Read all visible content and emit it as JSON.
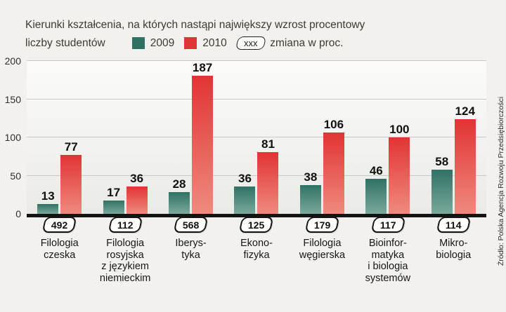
{
  "title": {
    "line1": "Kierunki kształcenia, na których nastąpi największy wzrost procentowy",
    "line2": "liczby studentów"
  },
  "legend": {
    "label_2009": "2009",
    "label_2010": "2010",
    "badge_sample": "xxx",
    "badge_label": "zmiana w proc."
  },
  "source": "Źródło: Polska Agencja Rozwoju Przedsiębiorczości",
  "colors": {
    "c2009": "#2f7264",
    "c2009_light": "#7aa99c",
    "c2010": "#e13434",
    "c2010_light": "#ef8a7e",
    "baseline": "#141414"
  },
  "chart_data": {
    "type": "bar",
    "title": "Kierunki kształcenia, na których nastąpi największy wzrost procentowy liczby studentów",
    "categories": [
      "Filologia czeska",
      "Filologia rosyjska z językiem niemieckim",
      "Iberystyka",
      "Ekonofizyka",
      "Filologia węgierska",
      "Bioinformatyka i biologia systemów",
      "Mikrobiologia"
    ],
    "category_lines": [
      [
        "Filologia",
        "czeska"
      ],
      [
        "Filologia",
        "rosyjska",
        "z językiem",
        "niemieckim"
      ],
      [
        "Iberys-",
        "tyka"
      ],
      [
        "Ekono-",
        "fizyka"
      ],
      [
        "Filologia",
        "węgierska"
      ],
      [
        "Bioinfor-",
        "matyka",
        "i biologia",
        "systemów"
      ],
      [
        "Mikro-",
        "biologia"
      ]
    ],
    "series": [
      {
        "name": "2009",
        "values": [
          13,
          17,
          28,
          36,
          38,
          46,
          58
        ]
      },
      {
        "name": "2010",
        "values": [
          77,
          36,
          187,
          81,
          106,
          100,
          124
        ]
      }
    ],
    "change_percent": [
      492,
      112,
      568,
      125,
      179,
      117,
      114
    ],
    "xlabel": "",
    "ylabel": "",
    "ylim": [
      0,
      200
    ],
    "yticks": [
      0,
      50,
      100,
      150,
      200
    ],
    "grid": true,
    "legend_position": "top"
  }
}
